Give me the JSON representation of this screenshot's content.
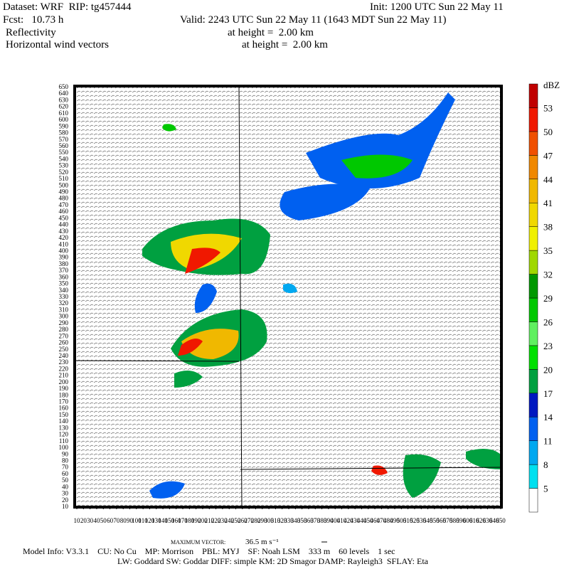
{
  "header": {
    "dataset": "Dataset: WRF  RIP: tg457444",
    "init": "Init: 1200 UTC Sun 22 May 11",
    "fcst": "Fcst:   10.73 h",
    "valid": "Valid: 2243 UTC Sun 22 May 11 (1643 MDT Sun 22 May 11)",
    "field1": "Reflectivity",
    "field1_level": "at height =  2.00 km",
    "field2": "Horizontal wind vectors",
    "field2_level": "at height =  2.00 km"
  },
  "map": {
    "xticks": [
      10,
      20,
      30,
      40,
      50,
      60,
      70,
      80,
      90,
      100,
      110,
      120,
      130,
      140,
      150,
      160,
      170,
      180,
      190,
      200,
      210,
      220,
      230,
      240,
      250,
      260,
      270,
      280,
      290,
      300,
      310,
      320,
      330,
      340,
      350,
      360,
      370,
      380,
      390,
      400,
      410,
      420,
      430,
      440,
      450,
      460,
      470,
      480,
      490,
      500,
      510,
      520,
      530,
      540,
      550,
      560,
      570,
      580,
      590,
      600,
      610,
      620,
      630,
      640,
      650
    ],
    "yticks": [
      10,
      20,
      30,
      40,
      50,
      60,
      70,
      80,
      90,
      100,
      110,
      120,
      130,
      140,
      150,
      160,
      170,
      180,
      190,
      200,
      210,
      220,
      230,
      240,
      250,
      260,
      270,
      280,
      290,
      300,
      310,
      320,
      330,
      340,
      350,
      360,
      370,
      380,
      390,
      400,
      410,
      420,
      430,
      440,
      450,
      460,
      470,
      480,
      490,
      500,
      510,
      520,
      530,
      540,
      550,
      560,
      570,
      580,
      590,
      600,
      610,
      620,
      630,
      640,
      650
    ],
    "xlim": [
      10,
      650
    ],
    "ylim": [
      10,
      650
    ]
  },
  "colorbar": {
    "unit": "dBZ",
    "labels": [
      5,
      8,
      11,
      14,
      17,
      20,
      23,
      26,
      29,
      32,
      35,
      38,
      41,
      44,
      47,
      50,
      53
    ],
    "colors": [
      "#ffffff",
      "#00e0f0",
      "#00a8f0",
      "#0060f0",
      "#0018c0",
      "#00a040",
      "#00e000",
      "#60f060",
      "#00c800",
      "#009800",
      "#a0d800",
      "#f0f000",
      "#f0d800",
      "#f0b800",
      "#f08800",
      "#f05000",
      "#f01800",
      "#c00000"
    ]
  },
  "footer": {
    "max_vector_label": "MAXIMUM VECTOR:",
    "max_vector": "36.5 m s⁻¹",
    "model_info": "Model Info: V3.3.1    CU: No Cu    MP: Morrison    PBL: MYJ    SF: Noah LSM    333 m    60 levels    1 sec",
    "model_info2": "LW: Goddard SW: Goddar DIFF: simple KM: 2D Smagor DAMP: Rayleigh3  SFLAY: Eta"
  }
}
